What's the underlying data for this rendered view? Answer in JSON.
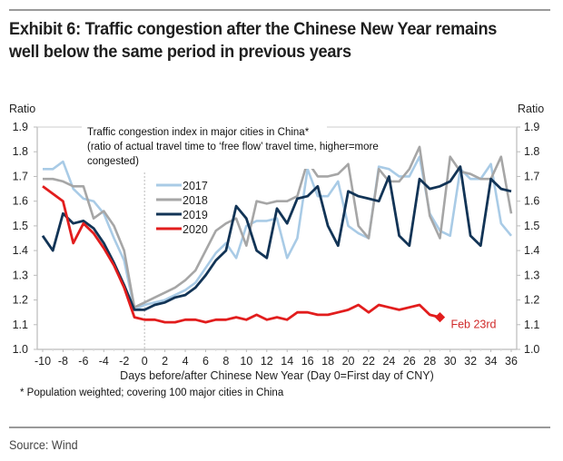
{
  "header": {
    "title": "Exhibit 6: Traffic congestion after the Chinese New Year remains well below the same period in previous years"
  },
  "footer": {
    "source": "Source: Wind"
  },
  "chart_data": {
    "type": "line",
    "title": "Traffic congestion index in major cities in China*",
    "subtitle_lines": [
      "Traffic congestion index in major cities in China*",
      "(ratio of actual travel time to ‘free flow’ travel time, higher=more",
      "congested)"
    ],
    "xlabel": "Days before/after Chinese New Year (Day 0=First day of CNY)",
    "ylabel_left": "Ratio",
    "ylabel_right": "Ratio",
    "footnote": "* Population weighted; covering 100 major cities in China",
    "xlim": [
      -10,
      36
    ],
    "ylim": [
      1.0,
      1.9
    ],
    "x_ticks": [
      -10,
      -8,
      -6,
      -4,
      -2,
      0,
      2,
      4,
      6,
      8,
      10,
      12,
      14,
      16,
      18,
      20,
      22,
      24,
      26,
      28,
      30,
      32,
      34,
      36
    ],
    "y_ticks": [
      "1.0",
      "1.1",
      "1.2",
      "1.3",
      "1.4",
      "1.5",
      "1.6",
      "1.7",
      "1.8",
      "1.9"
    ],
    "legend_position": "upper-left",
    "annotation": {
      "text": "Feb 23rd",
      "x": 29,
      "y": 1.13,
      "series": "2020"
    },
    "x": [
      -10,
      -9,
      -8,
      -7,
      -6,
      -5,
      -4,
      -3,
      -2,
      -1,
      0,
      1,
      2,
      3,
      4,
      5,
      6,
      7,
      8,
      9,
      10,
      11,
      12,
      13,
      14,
      15,
      16,
      17,
      18,
      19,
      20,
      21,
      22,
      23,
      24,
      25,
      26,
      27,
      28,
      29,
      30,
      31,
      32,
      33,
      34,
      35,
      36
    ],
    "series": [
      {
        "name": "2017",
        "color": "#a9cbe6",
        "values": [
          1.73,
          1.73,
          1.76,
          1.65,
          1.61,
          1.6,
          1.55,
          1.45,
          1.36,
          1.16,
          1.18,
          1.19,
          1.2,
          1.22,
          1.24,
          1.27,
          1.33,
          1.39,
          1.43,
          1.37,
          1.5,
          1.52,
          1.52,
          1.53,
          1.37,
          1.45,
          1.73,
          1.62,
          1.62,
          1.68,
          1.5,
          1.47,
          1.45,
          1.74,
          1.73,
          1.7,
          1.7,
          1.78,
          1.55,
          1.48,
          1.46,
          1.73,
          1.69,
          1.69,
          1.75,
          1.51,
          1.46
        ]
      },
      {
        "name": "2018",
        "color": "#a6a6a6",
        "values": [
          1.69,
          1.69,
          1.68,
          1.66,
          1.66,
          1.53,
          1.56,
          1.5,
          1.4,
          1.17,
          1.19,
          1.21,
          1.23,
          1.25,
          1.28,
          1.32,
          1.4,
          1.48,
          1.51,
          1.53,
          1.42,
          1.6,
          1.59,
          1.6,
          1.6,
          1.62,
          1.76,
          1.7,
          1.7,
          1.71,
          1.75,
          1.5,
          1.45,
          1.73,
          1.68,
          1.68,
          1.73,
          1.82,
          1.54,
          1.45,
          1.78,
          1.72,
          1.71,
          1.69,
          1.69,
          1.78,
          1.55
        ]
      },
      {
        "name": "2019",
        "color": "#123456",
        "values": [
          1.46,
          1.4,
          1.55,
          1.51,
          1.52,
          1.49,
          1.43,
          1.35,
          1.26,
          1.16,
          1.16,
          1.18,
          1.19,
          1.21,
          1.22,
          1.25,
          1.3,
          1.36,
          1.4,
          1.58,
          1.53,
          1.4,
          1.37,
          1.57,
          1.51,
          1.61,
          1.62,
          1.66,
          1.5,
          1.42,
          1.64,
          1.62,
          1.61,
          1.6,
          1.7,
          1.46,
          1.42,
          1.69,
          1.65,
          1.66,
          1.68,
          1.74,
          1.46,
          1.42,
          1.69,
          1.65,
          1.64
        ]
      },
      {
        "name": "2020",
        "color": "#e21d1d",
        "values": [
          1.66,
          1.63,
          1.6,
          1.43,
          1.51,
          1.47,
          1.41,
          1.34,
          1.25,
          1.13,
          1.12,
          1.12,
          1.11,
          1.11,
          1.12,
          1.12,
          1.11,
          1.12,
          1.12,
          1.13,
          1.12,
          1.14,
          1.12,
          1.13,
          1.12,
          1.15,
          1.15,
          1.14,
          1.14,
          1.15,
          1.16,
          1.18,
          1.15,
          1.18,
          1.17,
          1.16,
          1.17,
          1.18,
          1.14,
          1.13,
          null,
          null,
          null,
          null,
          null,
          null,
          null
        ]
      }
    ]
  }
}
